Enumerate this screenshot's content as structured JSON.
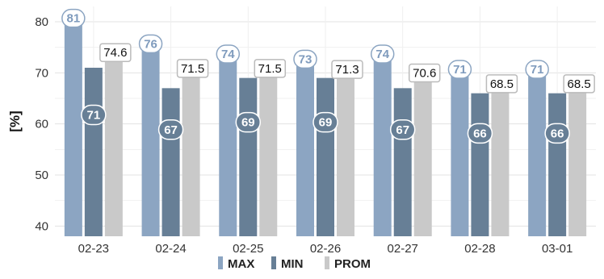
{
  "chart_data": {
    "type": "bar",
    "categories": [
      "02-23",
      "02-24",
      "02-25",
      "02-26",
      "02-27",
      "02-28",
      "03-01"
    ],
    "series": [
      {
        "name": "MAX",
        "values": [
          81,
          76,
          74,
          73,
          74,
          71,
          71
        ],
        "color": "#8ca5c2",
        "label_style": "white-rounded-blue-text"
      },
      {
        "name": "MIN",
        "values": [
          71,
          67,
          69,
          69,
          67,
          66,
          66
        ],
        "color": "#677f96",
        "label_style": "dark-rounded-white-text"
      },
      {
        "name": "PROM",
        "values": [
          74.6,
          71.5,
          71.5,
          71.3,
          70.6,
          68.5,
          68.5
        ],
        "color": "#c9c9c9",
        "label_style": "white-box-black-text"
      }
    ],
    "value_labels": {
      "MAX": [
        "81",
        "76",
        "74",
        "73",
        "74",
        "71",
        "71"
      ],
      "MIN": [
        "71",
        "67",
        "69",
        "69",
        "67",
        "66",
        "66"
      ],
      "PROM": [
        "74.6",
        "71.5",
        "71.5",
        "71.3",
        "70.6",
        "68.5",
        "68.5"
      ]
    },
    "ylabel": "[%]",
    "xlabel": "",
    "ylim": [
      38,
      83
    ],
    "yticks": [
      40,
      50,
      60,
      70,
      80
    ],
    "ytick_labels": [
      "40",
      "50",
      "60",
      "70",
      "80"
    ],
    "grid": true,
    "legend": {
      "placement": "bottom-center",
      "entries": [
        "MAX",
        "MIN",
        "PROM"
      ]
    }
  }
}
